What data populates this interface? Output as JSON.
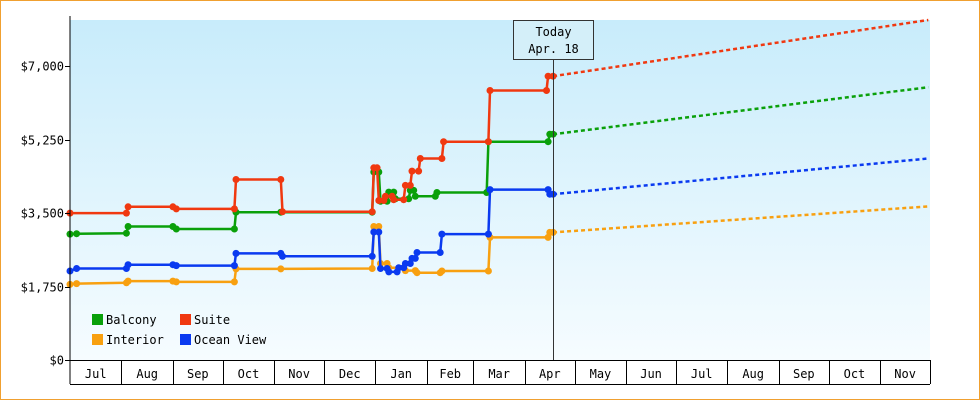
{
  "chart_data": {
    "type": "line",
    "title": "",
    "xlabel": "",
    "ylabel": "",
    "ylim": [
      0,
      8100
    ],
    "yticks": [
      0,
      1750,
      3500,
      5250,
      7000
    ],
    "ytick_labels": [
      "$0",
      "$1,750",
      "$3,500",
      "$5,250",
      "$7,000"
    ],
    "x_start": "2024-07-01",
    "x_end": "2025-11-30",
    "months": [
      "Jul",
      "Aug",
      "Sep",
      "Oct",
      "Nov",
      "Dec",
      "Jan",
      "Feb",
      "Mar",
      "Apr",
      "May",
      "Jun",
      "Jul",
      "Aug",
      "Sep",
      "Oct",
      "Nov"
    ],
    "grid": false,
    "legend_position": "bottom-left",
    "today": {
      "label": "Today",
      "date_label": "Apr. 18",
      "date": "2025-04-18"
    },
    "series": [
      {
        "name": "Balcony",
        "color": "#0aa00a",
        "style": "step",
        "points": [
          [
            "2024-07-01",
            3000
          ],
          [
            "2024-07-05",
            3010
          ],
          [
            "2024-08-04",
            3020
          ],
          [
            "2024-08-05",
            3180
          ],
          [
            "2024-09-01",
            3180
          ],
          [
            "2024-09-03",
            3120
          ],
          [
            "2024-10-08",
            3120
          ],
          [
            "2024-10-09",
            3520
          ],
          [
            "2024-11-05",
            3520
          ],
          [
            "2024-12-30",
            3520
          ],
          [
            "2024-12-31",
            4480
          ],
          [
            "2025-01-03",
            4480
          ],
          [
            "2025-01-04",
            3780
          ],
          [
            "2025-01-08",
            3780
          ],
          [
            "2025-01-09",
            4000
          ],
          [
            "2025-01-12",
            4000
          ],
          [
            "2025-01-13",
            3840
          ],
          [
            "2025-01-21",
            3840
          ],
          [
            "2025-01-22",
            4040
          ],
          [
            "2025-01-24",
            4040
          ],
          [
            "2025-01-25",
            3900
          ],
          [
            "2025-02-06",
            3900
          ],
          [
            "2025-02-07",
            3990
          ],
          [
            "2025-03-09",
            3990
          ],
          [
            "2025-03-10",
            5200
          ],
          [
            "2025-04-15",
            5200
          ],
          [
            "2025-04-16",
            5380
          ],
          [
            "2025-04-18",
            5380
          ]
        ],
        "forecast": [
          [
            "2025-04-18",
            5380
          ],
          [
            "2025-11-30",
            6500
          ]
        ]
      },
      {
        "name": "Suite",
        "color": "#f03810",
        "style": "step",
        "points": [
          [
            "2024-07-01",
            3500
          ],
          [
            "2024-08-04",
            3500
          ],
          [
            "2024-08-05",
            3650
          ],
          [
            "2024-09-01",
            3650
          ],
          [
            "2024-09-03",
            3600
          ],
          [
            "2024-10-08",
            3600
          ],
          [
            "2024-10-09",
            4300
          ],
          [
            "2024-11-05",
            4300
          ],
          [
            "2024-11-06",
            3530
          ],
          [
            "2024-12-30",
            3530
          ],
          [
            "2024-12-31",
            4580
          ],
          [
            "2025-01-02",
            4580
          ],
          [
            "2025-01-03",
            3800
          ],
          [
            "2025-01-06",
            3800
          ],
          [
            "2025-01-07",
            3900
          ],
          [
            "2025-01-11",
            3900
          ],
          [
            "2025-01-12",
            3820
          ],
          [
            "2025-01-18",
            3820
          ],
          [
            "2025-01-19",
            4160
          ],
          [
            "2025-01-22",
            4160
          ],
          [
            "2025-01-23",
            4500
          ],
          [
            "2025-01-27",
            4500
          ],
          [
            "2025-01-28",
            4800
          ],
          [
            "2025-02-10",
            4800
          ],
          [
            "2025-02-11",
            5200
          ],
          [
            "2025-03-10",
            5200
          ],
          [
            "2025-03-11",
            6420
          ],
          [
            "2025-04-14",
            6420
          ],
          [
            "2025-04-15",
            6760
          ],
          [
            "2025-04-18",
            6760
          ]
        ],
        "forecast": [
          [
            "2025-04-18",
            6760
          ],
          [
            "2025-11-30",
            8100
          ]
        ]
      },
      {
        "name": "Interior",
        "color": "#f8a010",
        "style": "step",
        "points": [
          [
            "2024-07-01",
            1800
          ],
          [
            "2024-07-05",
            1820
          ],
          [
            "2024-08-04",
            1840
          ],
          [
            "2024-08-05",
            1880
          ],
          [
            "2024-09-01",
            1880
          ],
          [
            "2024-09-03",
            1860
          ],
          [
            "2024-10-08",
            1860
          ],
          [
            "2024-10-09",
            2170
          ],
          [
            "2024-11-05",
            2170
          ],
          [
            "2024-12-30",
            2180
          ],
          [
            "2024-12-31",
            3180
          ],
          [
            "2025-01-03",
            3180
          ],
          [
            "2025-01-04",
            2300
          ],
          [
            "2025-01-08",
            2300
          ],
          [
            "2025-01-09",
            2200
          ],
          [
            "2025-01-18",
            2200
          ],
          [
            "2025-01-19",
            2130
          ],
          [
            "2025-01-25",
            2130
          ],
          [
            "2025-01-26",
            2080
          ],
          [
            "2025-02-09",
            2080
          ],
          [
            "2025-02-10",
            2120
          ],
          [
            "2025-03-10",
            2120
          ],
          [
            "2025-03-11",
            2920
          ],
          [
            "2025-04-15",
            2920
          ],
          [
            "2025-04-16",
            3040
          ],
          [
            "2025-04-18",
            3040
          ]
        ],
        "forecast": [
          [
            "2025-04-18",
            3040
          ],
          [
            "2025-11-30",
            3660
          ]
        ]
      },
      {
        "name": "Ocean View",
        "color": "#0a3af0",
        "style": "step",
        "points": [
          [
            "2024-07-01",
            2120
          ],
          [
            "2024-07-05",
            2180
          ],
          [
            "2024-08-04",
            2180
          ],
          [
            "2024-08-05",
            2270
          ],
          [
            "2024-09-01",
            2270
          ],
          [
            "2024-09-03",
            2250
          ],
          [
            "2024-10-08",
            2250
          ],
          [
            "2024-10-09",
            2540
          ],
          [
            "2024-11-05",
            2540
          ],
          [
            "2024-11-06",
            2470
          ],
          [
            "2024-12-30",
            2470
          ],
          [
            "2024-12-31",
            3050
          ],
          [
            "2025-01-03",
            3050
          ],
          [
            "2025-01-04",
            2180
          ],
          [
            "2025-01-08",
            2180
          ],
          [
            "2025-01-09",
            2100
          ],
          [
            "2025-01-14",
            2100
          ],
          [
            "2025-01-15",
            2200
          ],
          [
            "2025-01-18",
            2200
          ],
          [
            "2025-01-19",
            2300
          ],
          [
            "2025-01-22",
            2300
          ],
          [
            "2025-01-23",
            2420
          ],
          [
            "2025-01-25",
            2420
          ],
          [
            "2025-01-26",
            2560
          ],
          [
            "2025-02-09",
            2560
          ],
          [
            "2025-02-10",
            3000
          ],
          [
            "2025-03-10",
            3000
          ],
          [
            "2025-03-11",
            4060
          ],
          [
            "2025-04-15",
            4060
          ],
          [
            "2025-04-16",
            3950
          ],
          [
            "2025-04-18",
            3950
          ]
        ],
        "forecast": [
          [
            "2025-04-18",
            3950
          ],
          [
            "2025-11-30",
            4800
          ]
        ]
      }
    ]
  }
}
